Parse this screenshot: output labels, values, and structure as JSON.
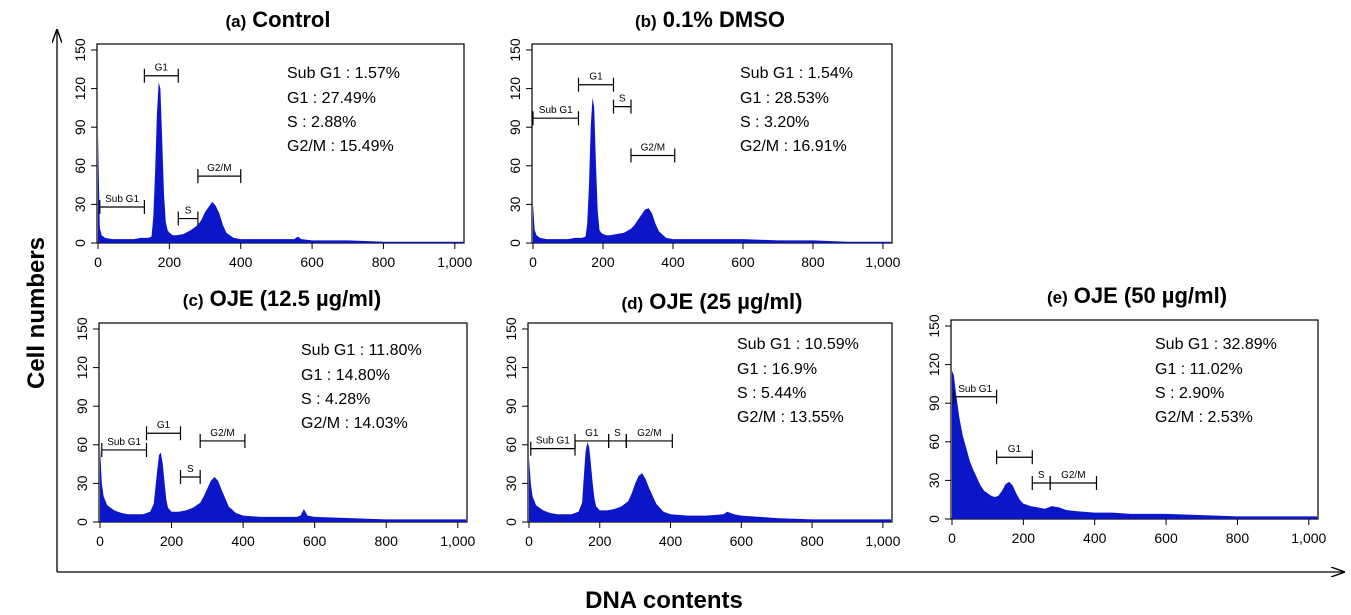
{
  "colors": {
    "histogram_fill": "#0b16c8",
    "ink": "#000000"
  },
  "xlabel": "DNA contents",
  "ylabel": "Cell numbers",
  "chart_data": [
    {
      "type": "area",
      "tag": "(a)",
      "title": "Control",
      "xlim": [
        0,
        1023
      ],
      "ylim": [
        0,
        150
      ],
      "xticks": [
        0,
        200,
        400,
        600,
        800,
        1000
      ],
      "xtick_labels": [
        "0",
        "200",
        "400",
        "600",
        "800",
        "1,000"
      ],
      "yticks": [
        0,
        30,
        60,
        90,
        120,
        150
      ],
      "ytick_labels": [
        "0",
        "30",
        "60",
        "90",
        "120",
        "150"
      ],
      "stats": [
        "Sub G1 : 1.57%",
        "G1 : 27.49%",
        "S : 2.88%",
        "G2/M : 15.49%"
      ],
      "gates": [
        {
          "label": "Sub G1",
          "x": [
            5,
            130
          ],
          "y": 28
        },
        {
          "label": "G1",
          "x": [
            130,
            225
          ],
          "y": 130
        },
        {
          "label": "S",
          "x": [
            225,
            280
          ],
          "y": 19
        },
        {
          "label": "G2/M",
          "x": [
            280,
            400
          ],
          "y": 52
        }
      ],
      "x": [
        0,
        5,
        10,
        20,
        40,
        60,
        80,
        100,
        120,
        140,
        150,
        155,
        160,
        165,
        170,
        175,
        180,
        185,
        190,
        195,
        200,
        210,
        220,
        240,
        260,
        280,
        290,
        300,
        310,
        320,
        330,
        340,
        350,
        360,
        380,
        400,
        450,
        500,
        550,
        560,
        570,
        600,
        700,
        800,
        900,
        1000,
        1023
      ],
      "y": [
        85,
        12,
        6,
        4,
        3,
        3,
        3,
        3,
        4,
        4,
        5,
        20,
        55,
        100,
        125,
        120,
        80,
        38,
        16,
        10,
        8,
        6,
        6,
        7,
        10,
        14,
        18,
        24,
        28,
        32,
        29,
        23,
        14,
        8,
        4,
        3,
        3,
        3,
        3,
        5,
        3,
        2,
        2,
        1,
        1,
        1,
        1
      ]
    },
    {
      "type": "area",
      "tag": "(b)",
      "title": "0.1% DMSO",
      "xlim": [
        0,
        1023
      ],
      "ylim": [
        0,
        150
      ],
      "xticks": [
        0,
        200,
        400,
        600,
        800,
        1000
      ],
      "xtick_labels": [
        "0",
        "200",
        "400",
        "600",
        "800",
        "1,000"
      ],
      "yticks": [
        0,
        30,
        60,
        90,
        120,
        150
      ],
      "ytick_labels": [
        "0",
        "30",
        "60",
        "90",
        "120",
        "150"
      ],
      "stats": [
        "Sub G1 : 1.54%",
        "G1 : 28.53%",
        "S : 3.20%",
        "G2/M : 16.91%"
      ],
      "gates": [
        {
          "label": "Sub G1",
          "x": [
            0,
            130
          ],
          "y": 97
        },
        {
          "label": "G1",
          "x": [
            130,
            230
          ],
          "y": 123
        },
        {
          "label": "S",
          "x": [
            230,
            280
          ],
          "y": 106
        },
        {
          "label": "G2/M",
          "x": [
            280,
            405
          ],
          "y": 68
        }
      ],
      "x": [
        0,
        5,
        10,
        20,
        40,
        60,
        80,
        100,
        120,
        140,
        150,
        155,
        160,
        165,
        170,
        175,
        180,
        185,
        190,
        195,
        200,
        210,
        220,
        240,
        260,
        280,
        290,
        300,
        310,
        320,
        330,
        340,
        350,
        360,
        380,
        400,
        450,
        500,
        550,
        600,
        700,
        800,
        900,
        1000,
        1023
      ],
      "y": [
        30,
        10,
        6,
        4,
        3,
        3,
        3,
        3,
        4,
        4,
        5,
        15,
        45,
        90,
        113,
        105,
        60,
        25,
        10,
        8,
        7,
        6,
        6,
        7,
        8,
        11,
        14,
        18,
        22,
        26,
        27,
        23,
        15,
        9,
        4,
        3,
        3,
        3,
        3,
        3,
        2,
        2,
        1,
        1,
        1
      ]
    },
    {
      "type": "area",
      "tag": "(c)",
      "title": "OJE (12.5 µg/ml)",
      "xlim": [
        0,
        1023
      ],
      "ylim": [
        0,
        150
      ],
      "xticks": [
        0,
        200,
        400,
        600,
        800,
        1000
      ],
      "xtick_labels": [
        "0",
        "200",
        "400",
        "600",
        "800",
        "1,000"
      ],
      "yticks": [
        0,
        30,
        60,
        90,
        120,
        150
      ],
      "ytick_labels": [
        "0",
        "30",
        "60",
        "90",
        "120",
        "150"
      ],
      "stats": [
        "Sub G1 : 11.80%",
        "G1 : 14.80%",
        "S : 4.28%",
        "G2/M : 14.03%"
      ],
      "gates": [
        {
          "label": "Sub G1",
          "x": [
            5,
            130
          ],
          "y": 56
        },
        {
          "label": "G1",
          "x": [
            130,
            225
          ],
          "y": 69
        },
        {
          "label": "S",
          "x": [
            225,
            280
          ],
          "y": 35
        },
        {
          "label": "G2/M",
          "x": [
            280,
            405
          ],
          "y": 63
        }
      ],
      "x": [
        0,
        5,
        10,
        20,
        40,
        60,
        80,
        100,
        120,
        140,
        150,
        160,
        165,
        170,
        175,
        180,
        185,
        190,
        200,
        220,
        240,
        260,
        280,
        290,
        300,
        310,
        320,
        330,
        340,
        360,
        380,
        400,
        450,
        500,
        550,
        560,
        570,
        580,
        600,
        700,
        800,
        900,
        1000,
        1023
      ],
      "y": [
        58,
        30,
        20,
        13,
        9,
        7,
        6,
        6,
        6,
        8,
        14,
        40,
        52,
        54,
        46,
        32,
        18,
        11,
        8,
        8,
        9,
        11,
        15,
        20,
        26,
        32,
        35,
        32,
        25,
        12,
        7,
        5,
        4,
        4,
        4,
        5,
        10,
        5,
        4,
        3,
        2,
        2,
        2,
        2
      ]
    },
    {
      "type": "area",
      "tag": "(d)",
      "title": "OJE (25 µg/ml)",
      "xlim": [
        0,
        1023
      ],
      "ylim": [
        0,
        150
      ],
      "xticks": [
        0,
        200,
        400,
        600,
        800,
        1000
      ],
      "xtick_labels": [
        "0",
        "200",
        "400",
        "600",
        "800",
        "1,000"
      ],
      "yticks": [
        0,
        30,
        60,
        90,
        120,
        150
      ],
      "ytick_labels": [
        "0",
        "30",
        "60",
        "90",
        "120",
        "150"
      ],
      "stats": [
        "Sub G1 : 10.59%",
        "G1 : 16.9%",
        "S : 5.44%",
        "G2/M : 13.55%"
      ],
      "gates": [
        {
          "label": "Sub G1",
          "x": [
            5,
            130
          ],
          "y": 57
        },
        {
          "label": "G1",
          "x": [
            130,
            225
          ],
          "y": 63
        },
        {
          "label": "S",
          "x": [
            225,
            275
          ],
          "y": 63
        },
        {
          "label": "G2/M",
          "x": [
            275,
            405
          ],
          "y": 63
        }
      ],
      "x": [
        0,
        5,
        10,
        20,
        40,
        60,
        80,
        100,
        120,
        140,
        150,
        155,
        160,
        165,
        170,
        175,
        180,
        185,
        190,
        200,
        220,
        240,
        260,
        280,
        290,
        300,
        310,
        320,
        330,
        340,
        360,
        380,
        400,
        450,
        500,
        550,
        560,
        580,
        600,
        700,
        800,
        900,
        1000,
        1023
      ],
      "y": [
        50,
        30,
        20,
        13,
        9,
        7,
        6,
        6,
        6,
        8,
        15,
        35,
        55,
        62,
        58,
        45,
        30,
        18,
        12,
        9,
        9,
        10,
        12,
        16,
        22,
        30,
        36,
        38,
        33,
        26,
        14,
        8,
        6,
        5,
        5,
        6,
        8,
        6,
        5,
        3,
        2,
        2,
        2,
        2
      ]
    },
    {
      "type": "area",
      "tag": "(e)",
      "title": "OJE (50 µg/ml)",
      "xlim": [
        0,
        1023
      ],
      "ylim": [
        0,
        150
      ],
      "xticks": [
        0,
        200,
        400,
        600,
        800,
        1000
      ],
      "xtick_labels": [
        "0",
        "200",
        "400",
        "600",
        "800",
        "1,000"
      ],
      "yticks": [
        0,
        30,
        60,
        90,
        120,
        150
      ],
      "ytick_labels": [
        "0",
        "30",
        "60",
        "90",
        "120",
        "150"
      ],
      "stats": [
        "Sub G1 : 32.89%",
        "G1 : 11.02%",
        "S : 2.90%",
        "G2/M : 2.53%"
      ],
      "gates": [
        {
          "label": "Sub G1",
          "x": [
            5,
            125
          ],
          "y": 95
        },
        {
          "label": "G1",
          "x": [
            125,
            225
          ],
          "y": 48
        },
        {
          "label": "S",
          "x": [
            225,
            275
          ],
          "y": 28
        },
        {
          "label": "G2/M",
          "x": [
            275,
            405
          ],
          "y": 28
        }
      ],
      "x": [
        0,
        5,
        10,
        20,
        30,
        40,
        50,
        60,
        70,
        80,
        90,
        100,
        110,
        120,
        130,
        140,
        150,
        160,
        170,
        180,
        190,
        200,
        220,
        240,
        260,
        280,
        300,
        320,
        350,
        400,
        450,
        500,
        550,
        600,
        700,
        800,
        900,
        1000,
        1023
      ],
      "y": [
        115,
        112,
        100,
        80,
        65,
        55,
        45,
        38,
        32,
        26,
        22,
        20,
        18,
        17,
        18,
        22,
        27,
        29,
        26,
        20,
        15,
        12,
        10,
        9,
        8,
        10,
        9,
        7,
        6,
        5,
        5,
        4,
        4,
        4,
        3,
        2,
        2,
        2,
        2
      ]
    }
  ]
}
